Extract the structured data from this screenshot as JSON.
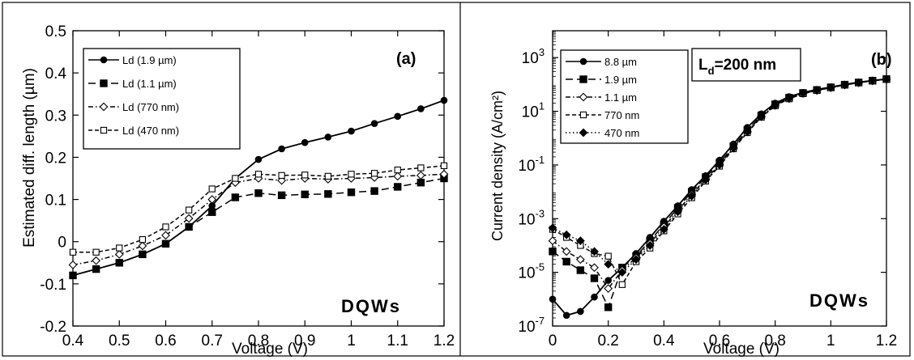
{
  "chart_data": [
    {
      "type": "line",
      "panel_label": "(a)",
      "annotation": "DQWs",
      "xlabel": "Voltage (V)",
      "ylabel": "Estimated diff. length (µm)",
      "xlim": [
        0.4,
        1.2
      ],
      "ylim": [
        -0.2,
        0.5
      ],
      "xticks": [
        "0.4",
        "0.5",
        "0.6",
        "0.7",
        "0.8",
        "0.9",
        "1",
        "1.1",
        "1.2"
      ],
      "yticks": [
        "-0.2",
        "-0.1",
        "0",
        "0.1",
        "0.2",
        "0.3",
        "0.4",
        "0.5"
      ],
      "grid": false,
      "legend_position": "top-left",
      "x": [
        0.4,
        0.45,
        0.5,
        0.55,
        0.6,
        0.65,
        0.7,
        0.75,
        0.8,
        0.85,
        0.9,
        0.95,
        1.0,
        1.05,
        1.1,
        1.15,
        1.2
      ],
      "series": [
        {
          "name": "Ld (1.9 µm)",
          "marker": "circle",
          "dash": "solid",
          "values": [
            -0.08,
            -0.065,
            -0.05,
            -0.03,
            -0.005,
            0.035,
            0.085,
            0.15,
            0.195,
            0.22,
            0.235,
            0.248,
            0.262,
            0.28,
            0.297,
            0.315,
            0.335
          ]
        },
        {
          "name": "Ld (1.1 µm)",
          "marker": "square-filled",
          "dash": "longdash",
          "values": [
            -0.08,
            -0.065,
            -0.05,
            -0.03,
            -0.005,
            0.035,
            0.07,
            0.105,
            0.115,
            0.11,
            0.112,
            0.113,
            0.117,
            0.12,
            0.13,
            0.14,
            0.15
          ]
        },
        {
          "name": "Ld (770 nm)",
          "marker": "diamond-open",
          "dash": "dashdot",
          "values": [
            -0.055,
            -0.045,
            -0.03,
            -0.01,
            0.015,
            0.055,
            0.1,
            0.14,
            0.15,
            0.145,
            0.15,
            0.148,
            0.15,
            0.152,
            0.155,
            0.157,
            0.16
          ]
        },
        {
          "name": "Ld (470 nm)",
          "marker": "square-open",
          "dash": "dash",
          "values": [
            -0.025,
            -0.025,
            -0.015,
            0.005,
            0.035,
            0.075,
            0.125,
            0.15,
            0.16,
            0.157,
            0.158,
            0.155,
            0.16,
            0.162,
            0.17,
            0.175,
            0.18
          ]
        }
      ]
    },
    {
      "type": "line",
      "panel_label": "(b)",
      "annotation": "DQWs",
      "inset_label": "L_d=200 nm",
      "xlabel": "Voltage (V)",
      "ylabel": "Current density (A/cm²)",
      "xlim": [
        0,
        1.2
      ],
      "ylim": [
        1e-07,
        10000
      ],
      "yscale": "log",
      "xticks": [
        "0",
        "0.2",
        "0.4",
        "0.6",
        "0.8",
        "1",
        "1.2"
      ],
      "yticks": [
        "10^-7",
        "10^-5",
        "10^-3",
        "10^-1",
        "10^1",
        "10^3"
      ],
      "grid": false,
      "legend_position": "top-left",
      "x": [
        0,
        0.05,
        0.1,
        0.15,
        0.2,
        0.25,
        0.3,
        0.35,
        0.4,
        0.45,
        0.5,
        0.55,
        0.6,
        0.65,
        0.7,
        0.75,
        0.8,
        0.85,
        0.9,
        0.95,
        1.0,
        1.05,
        1.1,
        1.15,
        1.2
      ],
      "series": [
        {
          "name": "8.8 µm",
          "marker": "circle",
          "dash": "solid",
          "values": [
            1e-06,
            2.5e-07,
            3.5e-07,
            1.2e-06,
            5e-06,
            1.5e-05,
            5e-05,
            0.0002,
            0.0008,
            0.003,
            0.012,
            0.04,
            0.15,
            0.6,
            2.5,
            8,
            20,
            35,
            50,
            65,
            80,
            100,
            120,
            140,
            160
          ]
        },
        {
          "name": "1.9 µm",
          "marker": "square-filled",
          "dash": "longdash",
          "values": [
            6e-05,
            2.5e-05,
            1.2e-05,
            6e-06,
            5e-07,
            1.5e-05,
            4e-05,
            0.00015,
            0.0006,
            0.0025,
            0.01,
            0.035,
            0.12,
            0.5,
            2,
            7,
            18,
            32,
            48,
            62,
            78,
            98,
            118,
            138,
            158
          ]
        },
        {
          "name": "1.1 µm",
          "marker": "diamond-open",
          "dash": "dashdot",
          "values": [
            0.00015,
            6e-05,
            3e-05,
            1.5e-05,
            2.5e-06,
            1.2e-05,
            3.5e-05,
            0.00012,
            0.0005,
            0.002,
            0.008,
            0.03,
            0.1,
            0.45,
            1.8,
            6.5,
            17,
            30,
            46,
            60,
            76,
            96,
            116,
            136,
            156
          ]
        },
        {
          "name": "770 nm",
          "marker": "square-open",
          "dash": "dash",
          "values": [
            0.0004,
            0.0002,
            0.0001,
            5e-05,
            4e-05,
            3.5e-06,
            2.5e-05,
            8e-05,
            0.00035,
            0.0015,
            0.006,
            0.025,
            0.09,
            0.4,
            1.6,
            6,
            16,
            29,
            45,
            59,
            75,
            95,
            115,
            135,
            155
          ]
        },
        {
          "name": "470 nm",
          "marker": "diamond-filled",
          "dash": "dot",
          "values": [
            0.00045,
            0.00025,
            0.00015,
            6e-05,
            2e-05,
            1e-05,
            3e-05,
            0.0001,
            0.0004,
            0.0018,
            0.007,
            0.028,
            0.1,
            0.42,
            1.7,
            6.2,
            16.5,
            30,
            46,
            60,
            76,
            96,
            116,
            136,
            156
          ]
        }
      ]
    }
  ]
}
